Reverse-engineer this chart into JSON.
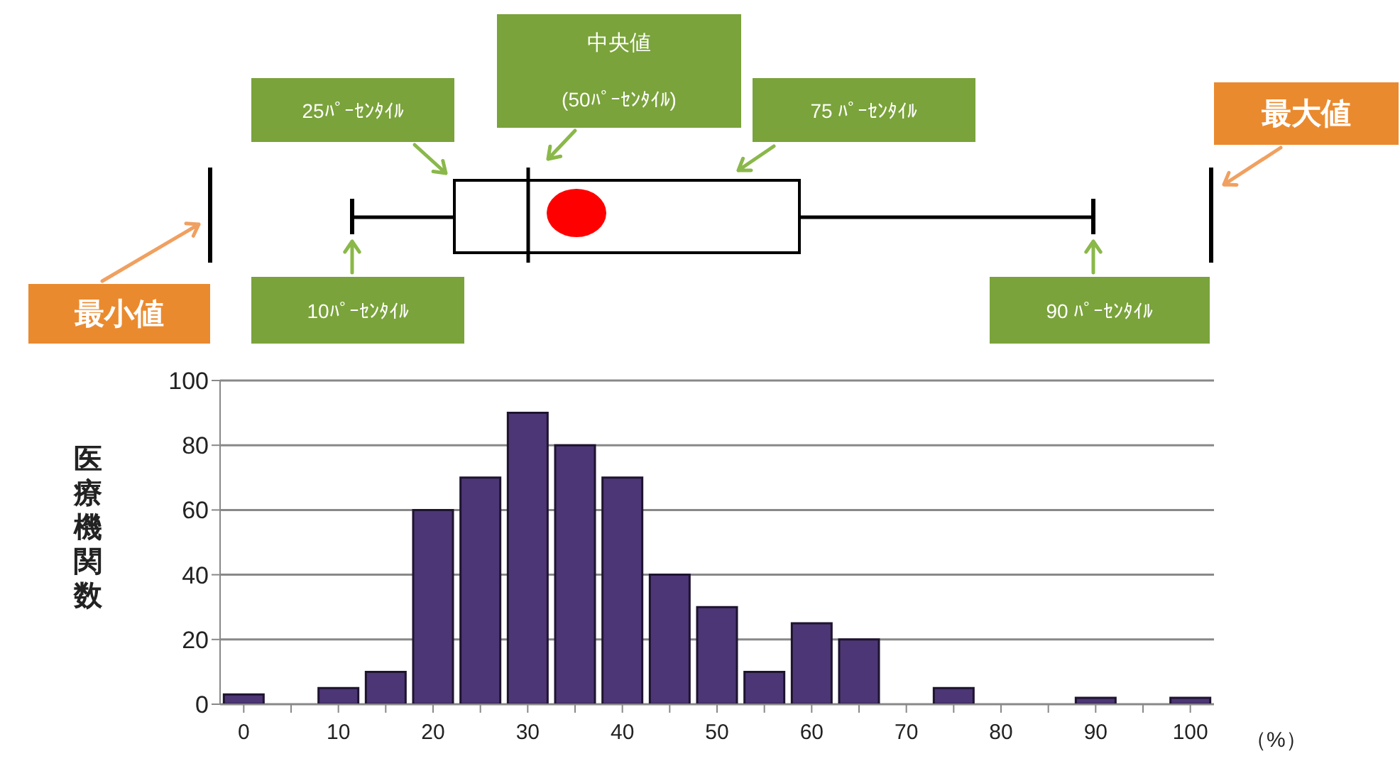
{
  "chart_data": {
    "type": "bar",
    "categories": [
      "0",
      null,
      "10",
      null,
      "20",
      null,
      "30",
      null,
      "40",
      null,
      "50",
      null,
      "60",
      null,
      "70",
      null,
      "80",
      null,
      "90",
      null,
      "100"
    ],
    "values": [
      3,
      0,
      5,
      10,
      60,
      70,
      90,
      80,
      70,
      40,
      30,
      10,
      25,
      20,
      0,
      5,
      0,
      0,
      2,
      0,
      2
    ],
    "color": "#4d3675",
    "ylim": [
      0,
      100
    ],
    "yticks": [
      0,
      20,
      40,
      60,
      80,
      100
    ],
    "ylabel": "医療機関数",
    "xlabel": "（%）",
    "grid": "y",
    "legend": false,
    "annotations": [
      "最小値",
      "10ﾊﾟｰｾﾝﾀｲﾙ",
      "25ﾊﾟｰｾﾝﾀｲﾙ",
      "中央値",
      "(50ﾊﾟｰｾﾝﾀｲﾙ)",
      "75 ﾊﾟｰｾﾝﾀｲﾙ",
      "90 ﾊﾟｰｾﾝﾀｲﾙ",
      "最大値"
    ]
  }
}
